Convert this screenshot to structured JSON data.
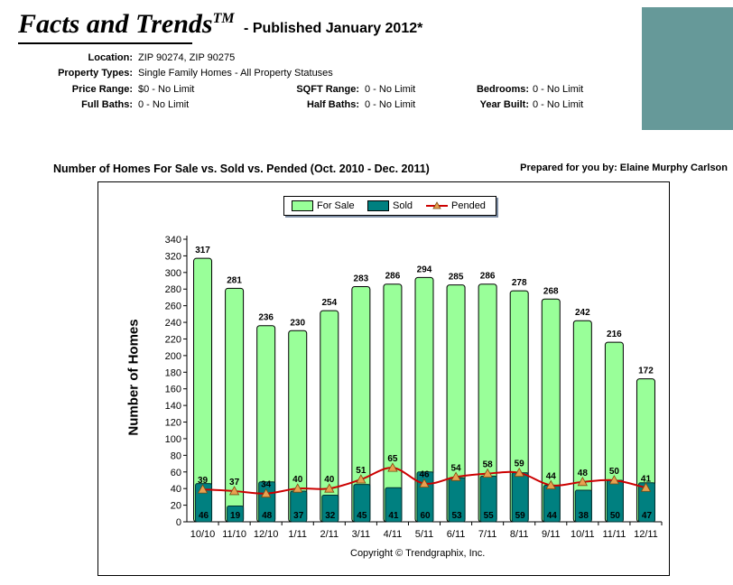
{
  "header": {
    "title": "Facts and Trends",
    "trademark": "TM",
    "published": "- Published January 2012*"
  },
  "info": {
    "location_label": "Location:",
    "location_value": "ZIP 90274, ZIP 90275",
    "property_label": "Property Types:",
    "property_value": "Single Family Homes - All Property Statuses",
    "price_label": "Price Range:",
    "price_value": "$0 - No Limit",
    "sqft_label": "SQFT Range:",
    "sqft_value": "0 - No Limit",
    "bedrooms_label": "Bedrooms:",
    "bedrooms_value": "0 - No Limit",
    "fullbaths_label": "Full Baths:",
    "fullbaths_value": "0 - No Limit",
    "halfbaths_label": "Half Baths:",
    "halfbaths_value": "0 - No Limit",
    "yearbuilt_label": "Year Built:",
    "yearbuilt_value": "0 - No Limit"
  },
  "prepared_for": "Prepared for you by: Elaine Murphy Carlson",
  "copyright": "Copyright © Trendgraphix, Inc.",
  "colors": {
    "for_sale": "#99ff99",
    "sold": "#008080",
    "pended": "#cc0000",
    "pended_marker": "#e8a050",
    "teal_box": "#669999"
  },
  "chart_data": {
    "type": "bar",
    "title": "Number of Homes For Sale vs. Sold vs. Pended (Oct. 2010 - Dec. 2011)",
    "xlabel": "",
    "ylabel": "Number of Homes",
    "ylim": [
      0,
      340
    ],
    "ytick_step": 20,
    "legend_position": "top-center",
    "categories": [
      "10/10",
      "11/10",
      "12/10",
      "1/11",
      "2/11",
      "3/11",
      "4/11",
      "5/11",
      "6/11",
      "7/11",
      "8/11",
      "9/11",
      "10/11",
      "11/11",
      "12/11"
    ],
    "series": [
      {
        "name": "For Sale",
        "type": "bar",
        "values": [
          317,
          281,
          236,
          230,
          254,
          283,
          286,
          294,
          285,
          286,
          278,
          268,
          242,
          216,
          172
        ]
      },
      {
        "name": "Sold",
        "type": "bar",
        "values": [
          46,
          19,
          48,
          37,
          32,
          45,
          41,
          60,
          53,
          55,
          59,
          44,
          38,
          50,
          47
        ]
      },
      {
        "name": "Pended",
        "type": "line",
        "values": [
          39,
          37,
          34,
          40,
          40,
          51,
          65,
          46,
          54,
          58,
          59,
          44,
          48,
          50,
          41
        ]
      }
    ]
  }
}
